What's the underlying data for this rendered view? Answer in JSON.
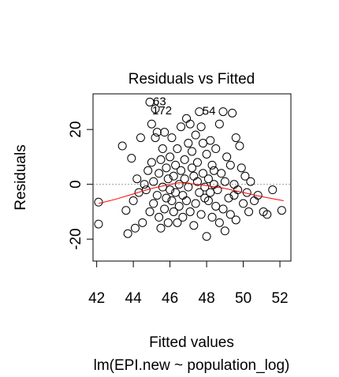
{
  "chart_data": {
    "type": "scatter",
    "title": "Residuals vs Fitted",
    "xlabel": "Fitted values",
    "sublabel": "lm(EPI.new ~ population_log)",
    "ylabel": "Residuals",
    "xlim": [
      41.8,
      52.6
    ],
    "ylim": [
      -28,
      33
    ],
    "xticks": [
      42,
      44,
      46,
      48,
      50,
      52
    ],
    "yticks": [
      -20,
      0,
      20
    ],
    "reference_line_y": 0,
    "colors": {
      "points": "#000000",
      "smooth": "#ff0000",
      "reference": "#9a9a9a"
    },
    "labeled_points": [
      {
        "label": "63",
        "x": 44.9,
        "y": 30
      },
      {
        "label": "172",
        "x": 45.2,
        "y": 27.5
      },
      {
        "label": "54",
        "x": 47.6,
        "y": 26.5
      }
    ],
    "points": [
      [
        44.9,
        30
      ],
      [
        45.2,
        27.5
      ],
      [
        47.6,
        26.5
      ],
      [
        42.1,
        -6.5
      ],
      [
        42.1,
        -14.5
      ],
      [
        43.4,
        14
      ],
      [
        43.6,
        -9.5
      ],
      [
        43.7,
        -18
      ],
      [
        43.9,
        9.5
      ],
      [
        44.0,
        -6
      ],
      [
        44.1,
        -16
      ],
      [
        44.2,
        2
      ],
      [
        44.3,
        -3
      ],
      [
        44.4,
        17
      ],
      [
        44.5,
        -14
      ],
      [
        44.6,
        0
      ],
      [
        44.7,
        -2
      ],
      [
        44.8,
        5
      ],
      [
        44.9,
        -10
      ],
      [
        45.0,
        22
      ],
      [
        45.0,
        8
      ],
      [
        45.1,
        1
      ],
      [
        45.1,
        -7
      ],
      [
        45.2,
        17
      ],
      [
        45.3,
        19
      ],
      [
        45.3,
        -4
      ],
      [
        45.4,
        -12
      ],
      [
        45.4,
        4
      ],
      [
        45.5,
        9
      ],
      [
        45.5,
        -16
      ],
      [
        45.6,
        13
      ],
      [
        45.6,
        -1
      ],
      [
        45.7,
        19
      ],
      [
        45.7,
        -9
      ],
      [
        45.8,
        6
      ],
      [
        45.8,
        -5
      ],
      [
        45.9,
        2
      ],
      [
        45.9,
        -14
      ],
      [
        46.0,
        10
      ],
      [
        46.0,
        -2
      ],
      [
        46.1,
        -6
      ],
      [
        46.1,
        17
      ],
      [
        46.2,
        3
      ],
      [
        46.2,
        -10
      ],
      [
        46.3,
        7
      ],
      [
        46.3,
        -3
      ],
      [
        46.4,
        -14
      ],
      [
        46.4,
        13
      ],
      [
        46.5,
        0
      ],
      [
        46.5,
        -8
      ],
      [
        46.6,
        21
      ],
      [
        46.6,
        5
      ],
      [
        46.7,
        -12
      ],
      [
        46.7,
        -4
      ],
      [
        46.8,
        2
      ],
      [
        46.8,
        9
      ],
      [
        46.9,
        24
      ],
      [
        46.9,
        -6
      ],
      [
        47.0,
        15
      ],
      [
        47.0,
        -1
      ],
      [
        47.1,
        22
      ],
      [
        47.1,
        -10
      ],
      [
        47.2,
        6
      ],
      [
        47.2,
        12
      ],
      [
        47.3,
        -15
      ],
      [
        47.3,
        3
      ],
      [
        47.4,
        18
      ],
      [
        47.4,
        -7
      ],
      [
        47.5,
        1
      ],
      [
        47.5,
        8
      ],
      [
        47.6,
        -3
      ],
      [
        47.7,
        21
      ],
      [
        47.7,
        -11
      ],
      [
        47.8,
        4
      ],
      [
        47.8,
        15
      ],
      [
        47.9,
        -5
      ],
      [
        47.9,
        -1
      ],
      [
        48.0,
        11
      ],
      [
        48.0,
        -19
      ],
      [
        48.1,
        2
      ],
      [
        48.1,
        -6
      ],
      [
        48.2,
        16
      ],
      [
        48.2,
        -3
      ],
      [
        48.3,
        7
      ],
      [
        48.3,
        -12
      ],
      [
        48.4,
        0
      ],
      [
        48.4,
        5
      ],
      [
        48.5,
        -8
      ],
      [
        48.5,
        13
      ],
      [
        48.6,
        -2
      ],
      [
        48.7,
        22
      ],
      [
        48.7,
        -14
      ],
      [
        48.8,
        4
      ],
      [
        48.9,
        -9
      ],
      [
        48.9,
        26.5
      ],
      [
        49.0,
        1
      ],
      [
        49.0,
        -17
      ],
      [
        49.1,
        10
      ],
      [
        49.2,
        -5
      ],
      [
        49.3,
        7
      ],
      [
        49.3,
        -11
      ],
      [
        49.4,
        26
      ],
      [
        49.5,
        0
      ],
      [
        49.5,
        -4
      ],
      [
        49.6,
        17
      ],
      [
        49.6,
        -13
      ],
      [
        49.7,
        -2
      ],
      [
        49.8,
        14
      ],
      [
        49.9,
        6
      ],
      [
        50.0,
        -7
      ],
      [
        50.1,
        3
      ],
      [
        50.2,
        -3
      ],
      [
        50.3,
        -10
      ],
      [
        50.4,
        1
      ],
      [
        50.6,
        -6
      ],
      [
        50.8,
        -4
      ],
      [
        51.1,
        -10
      ],
      [
        51.3,
        -11
      ],
      [
        51.6,
        -2
      ],
      [
        52.1,
        -9.5
      ]
    ],
    "smooth_line": [
      [
        42.1,
        -7
      ],
      [
        43,
        -5.5
      ],
      [
        44,
        -3.5
      ],
      [
        45,
        -1.5
      ],
      [
        46,
        0
      ],
      [
        46.5,
        0.6
      ],
      [
        47,
        0.3
      ],
      [
        47.5,
        0
      ],
      [
        48,
        -0.5
      ],
      [
        49,
        -1.5
      ],
      [
        50,
        -3
      ],
      [
        51,
        -4.5
      ],
      [
        52.2,
        -6
      ]
    ]
  }
}
